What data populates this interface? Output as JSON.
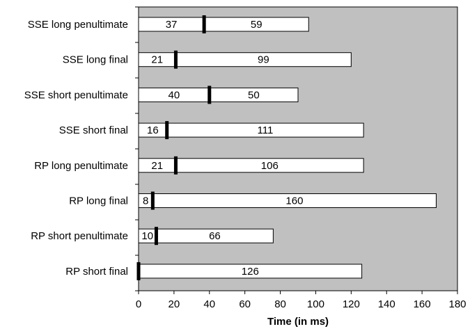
{
  "chart_data": {
    "type": "bar",
    "orientation": "horizontal",
    "stacked": true,
    "categories": [
      "SSE long penultimate",
      "SSE long final",
      "SSE short penultimate",
      "SSE short final",
      "RP long penultimate",
      "RP long final",
      "RP short penultimate",
      "RP short final"
    ],
    "series": [
      {
        "values": [
          37,
          21,
          40,
          16,
          21,
          8,
          10,
          0
        ]
      },
      {
        "values": [
          59,
          99,
          50,
          111,
          106,
          160,
          66,
          126
        ]
      }
    ],
    "data_labels": [
      [
        "37",
        "59"
      ],
      [
        "21",
        "99"
      ],
      [
        "40",
        "50"
      ],
      [
        "16",
        "111"
      ],
      [
        "21",
        "106"
      ],
      [
        "8",
        "160"
      ],
      [
        "10",
        "66"
      ],
      [
        "",
        "126"
      ]
    ],
    "xlabel": "Time (in ms)",
    "ylabel": "",
    "title": "",
    "xlim": [
      0,
      180
    ],
    "xticks": [
      "0",
      "20",
      "40",
      "60",
      "80",
      "100",
      "120",
      "140",
      "160",
      "180"
    ],
    "grid": false,
    "legend": "none",
    "colors": {
      "plot_background": "#c0c0c0",
      "bar_fill": "#ffffff",
      "bar_stroke": "#000000",
      "divider": "#000000"
    }
  }
}
